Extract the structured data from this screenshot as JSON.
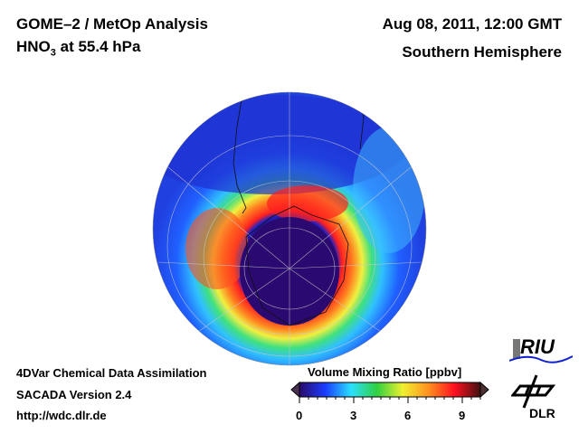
{
  "header": {
    "title": "GOME–2 / MetOp Analysis",
    "species": "HNO",
    "species_sub": "3",
    "level": " at 55.4 hPa",
    "datetime": "Aug 08, 2011, 12:00 GMT",
    "region": "Southern Hemisphere"
  },
  "footer": {
    "line1": "4DVar Chemical Data Assimilation",
    "line2": "SACADA Version 2.4",
    "url": "http://wdc.dlr.de"
  },
  "colorbar": {
    "title": "Volume Mixing Ratio [ppbv]",
    "min": 0,
    "max": 10,
    "ticks": [
      "0",
      "3",
      "6",
      "9"
    ],
    "colors": [
      "#2a0a6a",
      "#1a3cff",
      "#2ae0ff",
      "#30d040",
      "#f0f030",
      "#ff9020",
      "#ff1020",
      "#401010"
    ]
  },
  "logos": {
    "riu": "RIU",
    "dlr": "DLR"
  }
}
